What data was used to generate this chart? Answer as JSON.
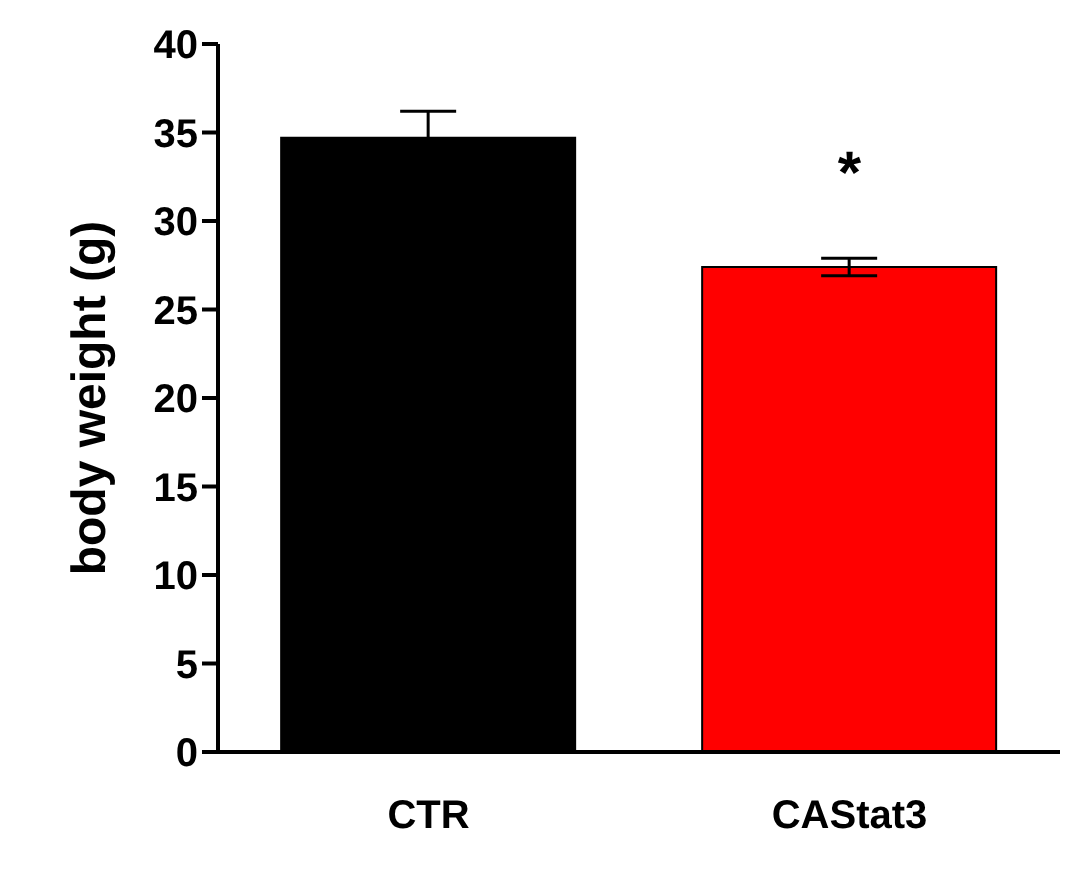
{
  "chart_data": {
    "type": "bar",
    "ylabel": "body weight (g)",
    "categories": [
      "CTR",
      "CAStat3"
    ],
    "values": [
      34.7,
      27.4
    ],
    "colors": [
      "#000000",
      "#ff0000"
    ],
    "errors": [
      1.5,
      0.5
    ],
    "ylim": [
      0,
      40
    ],
    "yticks": [
      0,
      5,
      10,
      15,
      20,
      25,
      30,
      35,
      40
    ],
    "grid": false,
    "annotations": [
      "*"
    ]
  }
}
